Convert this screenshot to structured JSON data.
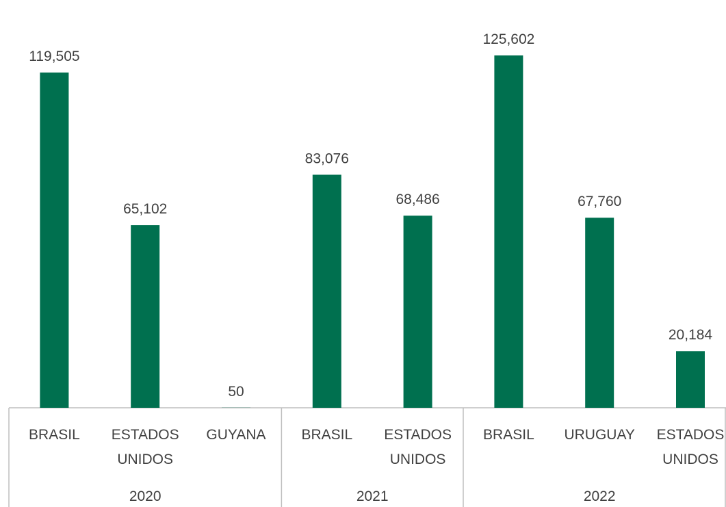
{
  "chart_data": {
    "type": "bar",
    "title": "",
    "xlabel": "",
    "ylabel": "",
    "ylim": [
      0,
      135000
    ],
    "grid": false,
    "legend": "none",
    "bar_color": "#00704F",
    "axis_color": "#BFBFBF",
    "text_color": "#404040",
    "groups": [
      {
        "label": "2020",
        "bars": [
          {
            "category": [
              "BRASIL"
            ],
            "value": 119505,
            "value_label": "119,505"
          },
          {
            "category": [
              "ESTADOS",
              "UNIDOS"
            ],
            "value": 65102,
            "value_label": "65,102"
          },
          {
            "category": [
              "GUYANA"
            ],
            "value": 50,
            "value_label": "50"
          }
        ]
      },
      {
        "label": "2021",
        "bars": [
          {
            "category": [
              "BRASIL"
            ],
            "value": 83076,
            "value_label": "83,076"
          },
          {
            "category": [
              "ESTADOS",
              "UNIDOS"
            ],
            "value": 68486,
            "value_label": "68,486"
          }
        ]
      },
      {
        "label": "2022",
        "bars": [
          {
            "category": [
              "BRASIL"
            ],
            "value": 125602,
            "value_label": "125,602"
          },
          {
            "category": [
              "URUGUAY"
            ],
            "value": 67760,
            "value_label": "67,760"
          },
          {
            "category": [
              "ESTADOS",
              "UNIDOS"
            ],
            "value": 20184,
            "value_label": "20,184"
          }
        ]
      }
    ]
  }
}
